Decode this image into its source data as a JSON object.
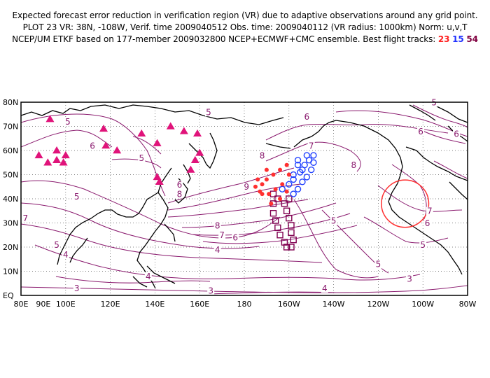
{
  "header": {
    "line1": "Expected forecast error reduction in verification region (VR) due to adaptive observations around any grid point.",
    "line2": "PLOT 23 VR: 38N, -108W, Verif. time 2009040512 Obs. time: 2009040112 (VR radius: 1000km) Norm: u,v,T",
    "line3_prefix": "NCEP/UM ETKF based on 177-member 2009032800 NCEP+ECMWF+CMC ensemble. Best flight tracks:",
    "tracks": [
      "23",
      "15",
      "54"
    ]
  },
  "map": {
    "lon_range": [
      80,
      280
    ],
    "lat_range": [
      0,
      80
    ],
    "lat_ticks": [
      "EQ",
      "10N",
      "20N",
      "30N",
      "40N",
      "50N",
      "60N",
      "70N",
      "80N"
    ],
    "lon_ticks": [
      "80E",
      "90E",
      "100E",
      "120E",
      "140E",
      "160E",
      "180",
      "160W",
      "140W",
      "120W",
      "100W",
      "80W"
    ],
    "lon_tick_values": [
      80,
      100,
      120,
      140,
      160,
      180,
      200,
      220,
      240,
      260,
      280
    ],
    "gridlines": "dotted",
    "colors": {
      "contour": "#8a1a6e",
      "coast": "#000000",
      "track23": "#ff3030",
      "track15": "#2040ff",
      "track54": "#800050",
      "vr_circle": "#ff3030",
      "stations": "#e0137a"
    },
    "contour_labels": [
      {
        "text": "5",
        "lon": 101,
        "lat": 71
      },
      {
        "text": "6",
        "lon": 112,
        "lat": 61
      },
      {
        "text": "5",
        "lon": 134,
        "lat": 56
      },
      {
        "text": "5",
        "lon": 164,
        "lat": 75
      },
      {
        "text": "6",
        "lon": 151,
        "lat": 45
      },
      {
        "text": "8",
        "lon": 151,
        "lat": 41
      },
      {
        "text": "7",
        "lon": 210,
        "lat": 61
      },
      {
        "text": "8",
        "lon": 188,
        "lat": 57
      },
      {
        "text": "9",
        "lon": 181,
        "lat": 44
      },
      {
        "text": "6",
        "lon": 208,
        "lat": 73
      },
      {
        "text": "8",
        "lon": 229,
        "lat": 53
      },
      {
        "text": "5",
        "lon": 105,
        "lat": 40
      },
      {
        "text": "7",
        "lon": 82,
        "lat": 31
      },
      {
        "text": "8",
        "lon": 168,
        "lat": 28
      },
      {
        "text": "7",
        "lon": 170,
        "lat": 24
      },
      {
        "text": "5",
        "lon": 96,
        "lat": 20
      },
      {
        "text": "4",
        "lon": 100,
        "lat": 16
      },
      {
        "text": "6",
        "lon": 176,
        "lat": 23
      },
      {
        "text": "4",
        "lon": 168,
        "lat": 18
      },
      {
        "text": "5",
        "lon": 220,
        "lat": 30
      },
      {
        "text": "5",
        "lon": 240,
        "lat": 12
      },
      {
        "text": "4",
        "lon": 137,
        "lat": 7
      },
      {
        "text": "3",
        "lon": 105,
        "lat": 2
      },
      {
        "text": "3",
        "lon": 165,
        "lat": 1
      },
      {
        "text": "4",
        "lon": 216,
        "lat": 2
      },
      {
        "text": "3",
        "lon": 254,
        "lat": 6
      },
      {
        "text": "5",
        "lon": 260,
        "lat": 20
      },
      {
        "text": "6",
        "lon": 262,
        "lat": 29
      },
      {
        "text": "7",
        "lon": 263,
        "lat": 34
      },
      {
        "text": "6",
        "lon": 259,
        "lat": 67
      },
      {
        "text": "6",
        "lon": 275,
        "lat": 66
      },
      {
        "text": "5",
        "lon": 265,
        "lat": 79
      }
    ],
    "vr_center": {
      "lon": 252,
      "lat": 38,
      "radius_deg": 10.6
    },
    "stations": [
      [
        88,
        58
      ],
      [
        92,
        55
      ],
      [
        96,
        60
      ],
      [
        96,
        56
      ],
      [
        100,
        58
      ],
      [
        99,
        55
      ],
      [
        93,
        73
      ],
      [
        117,
        69
      ],
      [
        118,
        62
      ],
      [
        123,
        60
      ],
      [
        134,
        67
      ],
      [
        141,
        63
      ],
      [
        147,
        70
      ],
      [
        153,
        68
      ],
      [
        159,
        67
      ],
      [
        160,
        59
      ],
      [
        158,
        56
      ],
      [
        156,
        52
      ],
      [
        141,
        49
      ],
      [
        142,
        47
      ]
    ],
    "track23": [
      [
        187,
        43
      ],
      [
        188,
        46
      ],
      [
        190,
        48
      ],
      [
        193,
        50
      ],
      [
        196,
        52
      ],
      [
        199,
        54
      ],
      [
        200,
        50
      ],
      [
        197,
        46
      ],
      [
        194,
        44
      ],
      [
        191,
        42
      ],
      [
        188,
        42
      ],
      [
        192,
        38
      ],
      [
        196,
        40
      ],
      [
        199,
        43
      ],
      [
        185,
        45
      ],
      [
        186,
        48
      ],
      [
        190,
        52
      ]
    ],
    "track15": [
      [
        197,
        44
      ],
      [
        200,
        46
      ],
      [
        202,
        48
      ],
      [
        205,
        51
      ],
      [
        207,
        54
      ],
      [
        209,
        56
      ],
      [
        211,
        58
      ],
      [
        211,
        55
      ],
      [
        210,
        52
      ],
      [
        208,
        49
      ],
      [
        206,
        47
      ],
      [
        204,
        44
      ],
      [
        202,
        42
      ],
      [
        206,
        52
      ],
      [
        204,
        54
      ],
      [
        208,
        58
      ],
      [
        202,
        50
      ],
      [
        204,
        56
      ]
    ],
    "track54": [
      [
        193,
        42
      ],
      [
        193,
        38
      ],
      [
        193,
        34
      ],
      [
        194,
        31
      ],
      [
        195,
        28
      ],
      [
        196,
        25
      ],
      [
        198,
        22
      ],
      [
        199,
        20
      ],
      [
        198,
        38
      ],
      [
        199,
        35
      ],
      [
        200,
        32
      ],
      [
        201,
        29
      ],
      [
        201,
        26
      ],
      [
        202,
        23
      ],
      [
        201,
        20
      ],
      [
        195,
        40
      ],
      [
        200,
        40
      ]
    ]
  }
}
